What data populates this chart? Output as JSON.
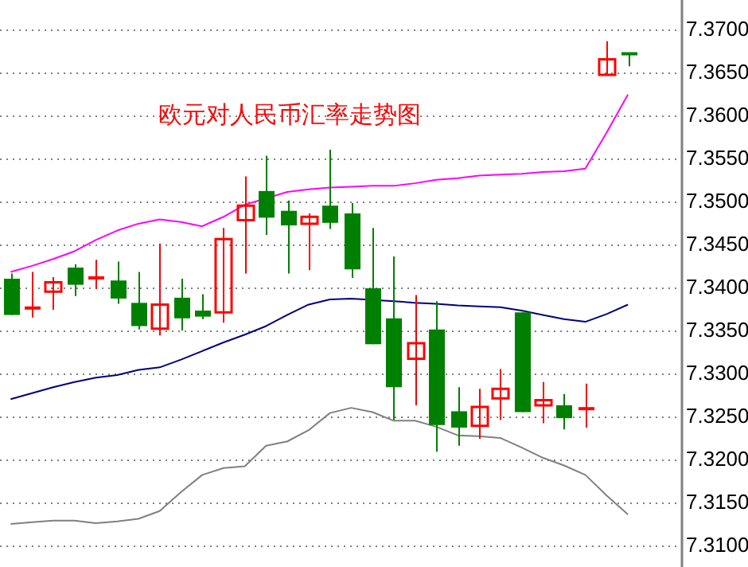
{
  "chart_data": {
    "type": "candlestick",
    "title": "欧元对人民币汇率走势图",
    "categories": [
      null,
      null,
      null,
      null,
      null,
      null,
      null,
      null,
      null,
      null,
      null,
      null,
      null,
      null,
      null,
      null,
      null,
      null,
      null,
      null,
      null,
      null,
      null,
      null,
      null,
      null,
      null,
      null,
      null,
      null,
      null,
      null
    ],
    "ohlc": [
      [
        7.3411,
        7.3417,
        7.3369,
        7.3369
      ],
      [
        7.3377,
        7.3419,
        7.3366,
        7.3377
      ],
      [
        7.3396,
        7.3413,
        7.3375,
        7.3407
      ],
      [
        7.3424,
        7.3428,
        7.3391,
        7.3404
      ],
      [
        7.3412,
        7.3433,
        7.3399,
        7.3412
      ],
      [
        7.3409,
        7.3431,
        7.3382,
        7.3388
      ],
      [
        7.3383,
        7.3419,
        7.3352,
        7.3356
      ],
      [
        7.3353,
        7.3452,
        7.3345,
        7.3381
      ],
      [
        7.3389,
        7.3411,
        7.3351,
        7.3365
      ],
      [
        7.3374,
        7.3393,
        7.3364,
        7.3367
      ],
      [
        7.3372,
        7.347,
        7.336,
        7.3457
      ],
      [
        7.3479,
        7.353,
        7.3417,
        7.3496
      ],
      [
        7.3513,
        7.3554,
        7.3462,
        7.3482
      ],
      [
        7.349,
        7.3502,
        7.3417,
        7.3473
      ],
      [
        7.3475,
        7.3487,
        7.3421,
        7.3483
      ],
      [
        7.3496,
        7.3561,
        7.3469,
        7.3476
      ],
      [
        7.3487,
        7.3499,
        7.3412,
        7.3422
      ],
      [
        7.34,
        7.347,
        7.3335,
        7.3335
      ],
      [
        7.3365,
        7.3437,
        7.3247,
        7.3285
      ],
      [
        7.3318,
        7.3392,
        7.3264,
        7.3336
      ],
      [
        7.3352,
        7.3385,
        7.321,
        7.3241
      ],
      [
        7.3257,
        7.3285,
        7.3217,
        7.3238
      ],
      [
        7.324,
        7.3283,
        7.3225,
        7.3262
      ],
      [
        7.3272,
        7.3306,
        7.3247,
        7.3283
      ],
      [
        7.3372,
        7.3372,
        7.3256,
        7.3256
      ],
      [
        7.3264,
        7.3291,
        7.3243,
        7.327
      ],
      [
        7.3264,
        7.3277,
        7.3236,
        7.3249
      ],
      [
        7.326,
        7.3289,
        7.3238,
        7.326
      ],
      [
        7.3648,
        7.3687,
        7.3648,
        7.3666
      ],
      [
        7.3673,
        7.3673,
        7.3658,
        7.3672
      ],
      null,
      null
    ],
    "colors": [
      "#008000",
      "#ff0000",
      "#ff0000",
      "#008000",
      "#ff0000",
      "#008000",
      "#008000",
      "#ff0000",
      "#008000",
      "#008000",
      "#ff0000",
      "#ff0000",
      "#008000",
      "#008000",
      "#ff0000",
      "#008000",
      "#008000",
      "#008000",
      "#008000",
      "#ff0000",
      "#008000",
      "#008000",
      "#ff0000",
      "#ff0000",
      "#008000",
      "#ff0000",
      "#008000",
      "#ff0000",
      "#ff0000",
      "#008000",
      null,
      null
    ],
    "series": [
      {
        "type": "line",
        "color": "#ff00ff",
        "values": [
          7.3419,
          7.3426,
          7.3434,
          7.3443,
          7.3456,
          7.3467,
          7.3475,
          7.348,
          7.3477,
          7.3472,
          7.3483,
          7.3497,
          null,
          7.3512,
          7.3515,
          7.3517,
          7.3518,
          7.3519,
          7.3519,
          7.3522,
          7.3526,
          7.3528,
          7.3531,
          7.3532,
          7.3533,
          7.3535,
          7.3536,
          7.3539,
          7.3581,
          7.3625,
          null,
          null
        ]
      },
      {
        "type": "line",
        "color": "#000080",
        "values": [
          7.3271,
          7.3278,
          7.3285,
          7.3291,
          7.3296,
          7.3299,
          7.3305,
          7.3308,
          7.3317,
          7.3327,
          7.3337,
          7.3346,
          7.3356,
          7.3369,
          7.3381,
          7.3387,
          7.3388,
          null,
          7.3385,
          7.3383,
          7.3382,
          7.338,
          7.3379,
          7.3378,
          7.3374,
          7.3369,
          7.3364,
          7.3361,
          7.337,
          7.3381,
          null,
          null
        ]
      },
      {
        "type": "line",
        "color": "#808080",
        "values": [
          7.3126,
          7.3128,
          7.313,
          7.313,
          7.3127,
          7.3129,
          7.3132,
          7.3141,
          7.3163,
          7.3183,
          7.3191,
          7.3193,
          7.3217,
          7.3222,
          7.3235,
          7.3255,
          7.3261,
          7.3256,
          7.3246,
          7.3246,
          7.3239,
          7.3229,
          7.3228,
          7.3226,
          7.3215,
          7.3203,
          7.3194,
          7.3183,
          7.3159,
          7.3137,
          null,
          null
        ]
      }
    ],
    "ylim": [
      7.3076,
      7.3735
    ],
    "yticks": [
      {
        "value": 7.31,
        "label": "7.3100"
      },
      {
        "value": 7.315,
        "label": "7.3150"
      },
      {
        "value": 7.32,
        "label": "7.3200"
      },
      {
        "value": 7.325,
        "label": "7.3250"
      },
      {
        "value": 7.33,
        "label": "7.3300"
      },
      {
        "value": 7.335,
        "label": "7.3350"
      },
      {
        "value": 7.34,
        "label": "7.3400"
      },
      {
        "value": 7.345,
        "label": "7.3450"
      },
      {
        "value": 7.35,
        "label": "7.3500"
      },
      {
        "value": 7.355,
        "label": "7.3550"
      },
      {
        "value": 7.36,
        "label": "7.3600"
      },
      {
        "value": 7.365,
        "label": "7.3650"
      },
      {
        "value": 7.37,
        "label": "7.3700"
      }
    ],
    "grid": "y",
    "tick_labels": "y",
    "legend": false
  }
}
